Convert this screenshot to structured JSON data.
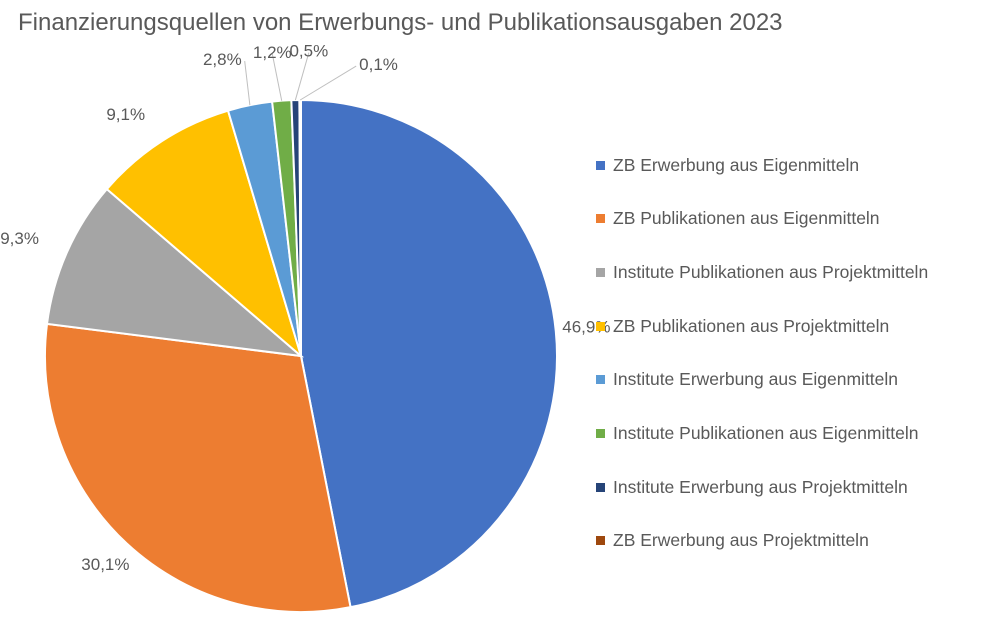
{
  "chart_data": {
    "type": "pie",
    "title": "Finanzierungsquellen von Erwerbungs- und Publikationsausgaben 2023",
    "legend_position": "right",
    "start_angle_deg": 0,
    "direction": "clockwise",
    "slices": [
      {
        "label": "ZB Erwerbung aus Eigenmitteln",
        "value": 46.9,
        "display": "46,9%",
        "color": "#4472C4"
      },
      {
        "label": "ZB Publikationen aus Eigenmitteln",
        "value": 30.1,
        "display": "30,1%",
        "color": "#ED7D31"
      },
      {
        "label": "Institute Publikationen aus Projektmitteln",
        "value": 9.3,
        "display": "9,3%",
        "color": "#A5A5A5"
      },
      {
        "label": "ZB Publikationen aus Projektmitteln",
        "value": 9.1,
        "display": "9,1%",
        "color": "#FFC000"
      },
      {
        "label": "Institute Erwerbung aus Eigenmitteln",
        "value": 2.8,
        "display": "2,8%",
        "color": "#5B9BD5"
      },
      {
        "label": "Institute Publikationen aus Eigenmitteln",
        "value": 1.2,
        "display": "1,2%",
        "color": "#70AD47"
      },
      {
        "label": "Institute Erwerbung aus Projektmitteln",
        "value": 0.5,
        "display": "0,5%",
        "color": "#264478"
      },
      {
        "label": "ZB Erwerbung aus Projektmitteln",
        "value": 0.1,
        "display": "0,1%",
        "color": "#9E480E"
      }
    ]
  }
}
